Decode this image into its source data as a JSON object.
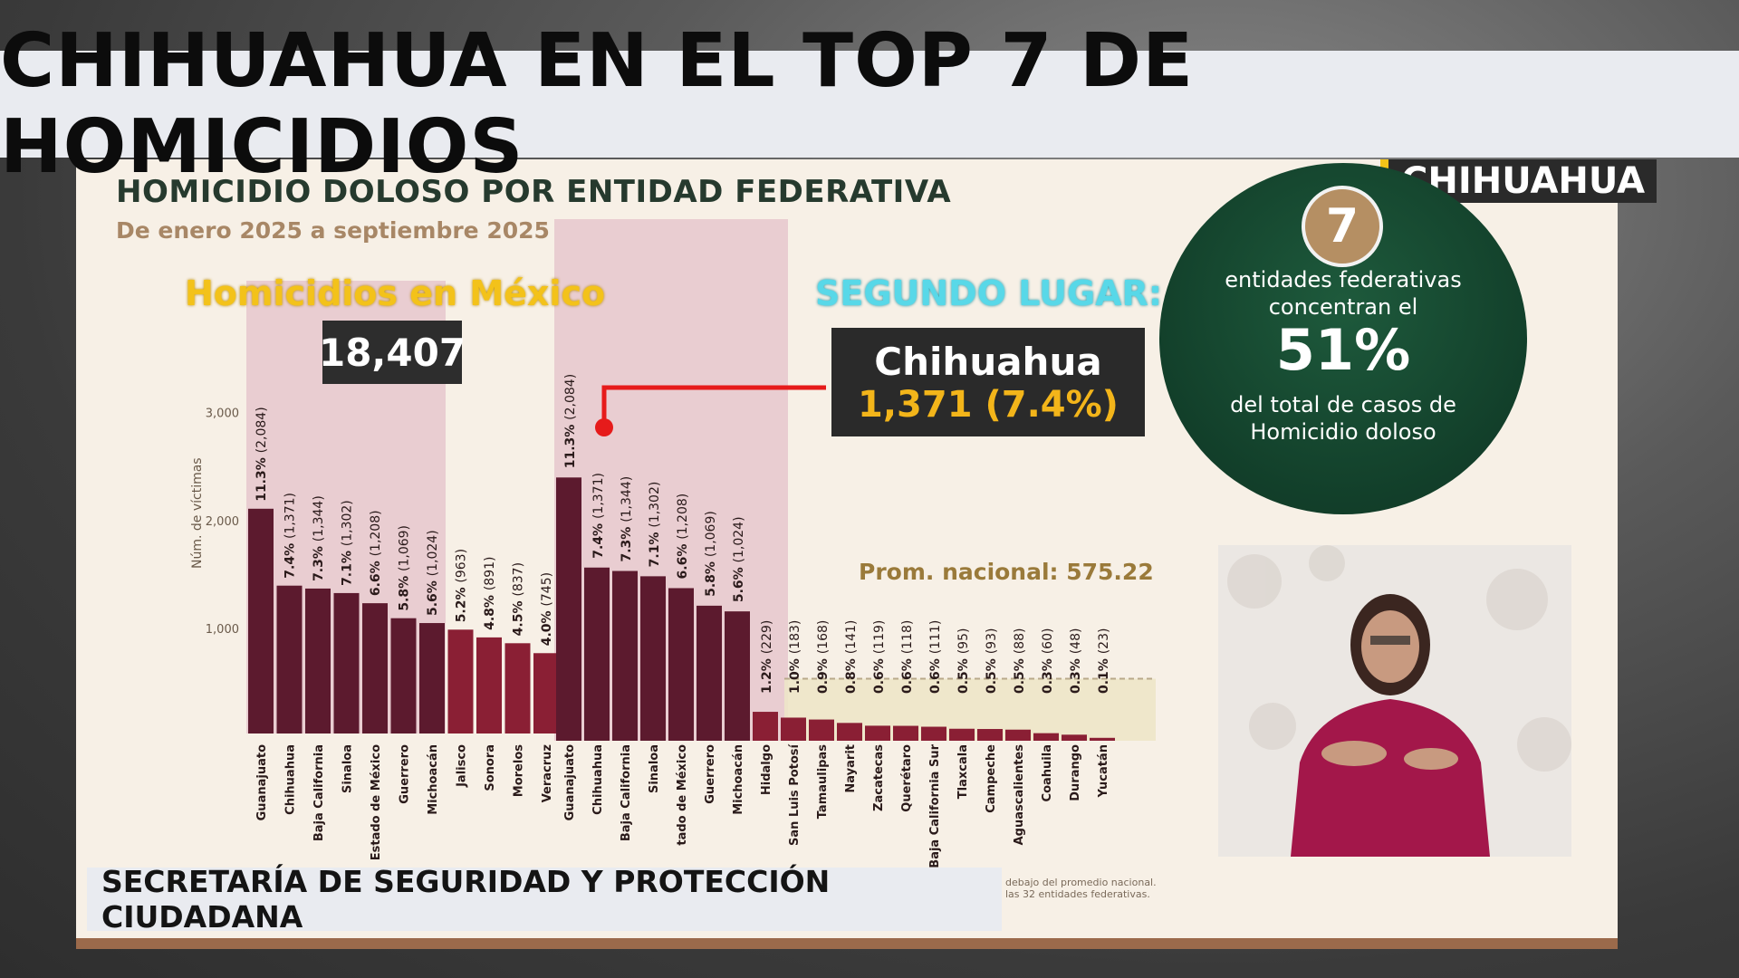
{
  "headline": "CHIHUAHUA EN EL TOP 7 DE HOMICIDIOS",
  "state_tag": "CHIHUAHUA",
  "slide": {
    "title": "HOMICIDIO DOLOSO POR ENTIDAD FEDERATIVA",
    "subtitle": "De enero 2025 a septiembre 2025",
    "mexico_label": "Homicidios en México",
    "mexico_total": "18,407",
    "segundo_label": "SEGUNDO LUGAR:",
    "highlight_name": "Chihuahua",
    "highlight_value": "1,371 (7.4%)",
    "circle_number": "7",
    "circle_line1": "entidades federativas concentran el",
    "circle_pct": "51%",
    "circle_line3": "del total de casos de Homicidio doloso",
    "footnote_lines": [
      "debajo del promedio nacional.",
      "las 32 entidades federativas."
    ]
  },
  "footer": "SECRETARÍA DE SEGURIDAD Y PROTECCIÓN CIUDADANA",
  "colors": {
    "dark_bar": "#5c1a2e",
    "mid_bar": "#8e2a43",
    "light_bar": "#8a1f34",
    "slide_bg": "#f7f0e6",
    "accent_yellow": "#f3c21a",
    "accent_cyan": "#58d8e8",
    "pointer_red": "#e61b1b"
  },
  "chart_data": [
    {
      "type": "bar",
      "ylabel": "Núm. de víctimas",
      "yticks": [
        "1,000",
        "2,000",
        "3,000"
      ],
      "ylim": [
        0,
        3000
      ],
      "average_label": "Prom. nacional: 575.22",
      "average": 575.22,
      "categories": [
        "Guanajuato",
        "Chihuahua",
        "Baja California",
        "Sinaloa",
        "Estado de México",
        "Guerrero",
        "Michoacán",
        "Jalisco",
        "Sonora",
        "Morelos",
        "Veracruz"
      ],
      "values": [
        2084,
        1371,
        1344,
        1302,
        1208,
        1069,
        1024,
        963,
        891,
        837,
        745
      ],
      "labels_pct": [
        "11.3%",
        "7.4%",
        "7.3%",
        "7.1%",
        "6.6%",
        "5.8%",
        "5.6%",
        "5.2%",
        "4.8%",
        "4.5%",
        "4.0%"
      ],
      "labels_val": [
        "(2,084)",
        "(1,371)",
        "(1,344)",
        "(1,302)",
        "(1,208)",
        "(1,069)",
        "(1,024)",
        "(963)",
        "(891)",
        "(837)",
        "(745)"
      ]
    },
    {
      "type": "bar",
      "categories": [
        "Guanajuato",
        "Chihuahua",
        "Baja California",
        "Sinaloa",
        "tado de México",
        "Guerrero",
        "Michoacán",
        "Hidalgo",
        "San Luis Potosí",
        "Tamaulipas",
        "Nayarit",
        "Zacatecas",
        "Querétaro",
        "Baja California Sur",
        "Tlaxcala",
        "Campeche",
        "Aguascalientes",
        "Coahuila",
        "Durango",
        "Yucatán"
      ],
      "values": [
        2084,
        1371,
        1344,
        1302,
        1208,
        1069,
        1024,
        229,
        183,
        168,
        141,
        119,
        118,
        111,
        95,
        93,
        88,
        60,
        48,
        23
      ],
      "labels_pct": [
        "11.3%",
        "7.4%",
        "7.3%",
        "7.1%",
        "6.6%",
        "5.8%",
        "5.6%",
        "1.2%",
        "1.0%",
        "0.9%",
        "0.8%",
        "0.6%",
        "0.6%",
        "0.6%",
        "0.5%",
        "0.5%",
        "0.5%",
        "0.3%",
        "0.3%",
        "0.1%"
      ],
      "labels_val": [
        "(2,084)",
        "(1,371)",
        "(1,344)",
        "(1,302)",
        "(1,208)",
        "(1,069)",
        "(1,024)",
        "(229)",
        "(183)",
        "(168)",
        "(141)",
        "(119)",
        "(118)",
        "(111)",
        "(95)",
        "(93)",
        "(88)",
        "(60)",
        "(48)",
        "(23)"
      ]
    }
  ]
}
